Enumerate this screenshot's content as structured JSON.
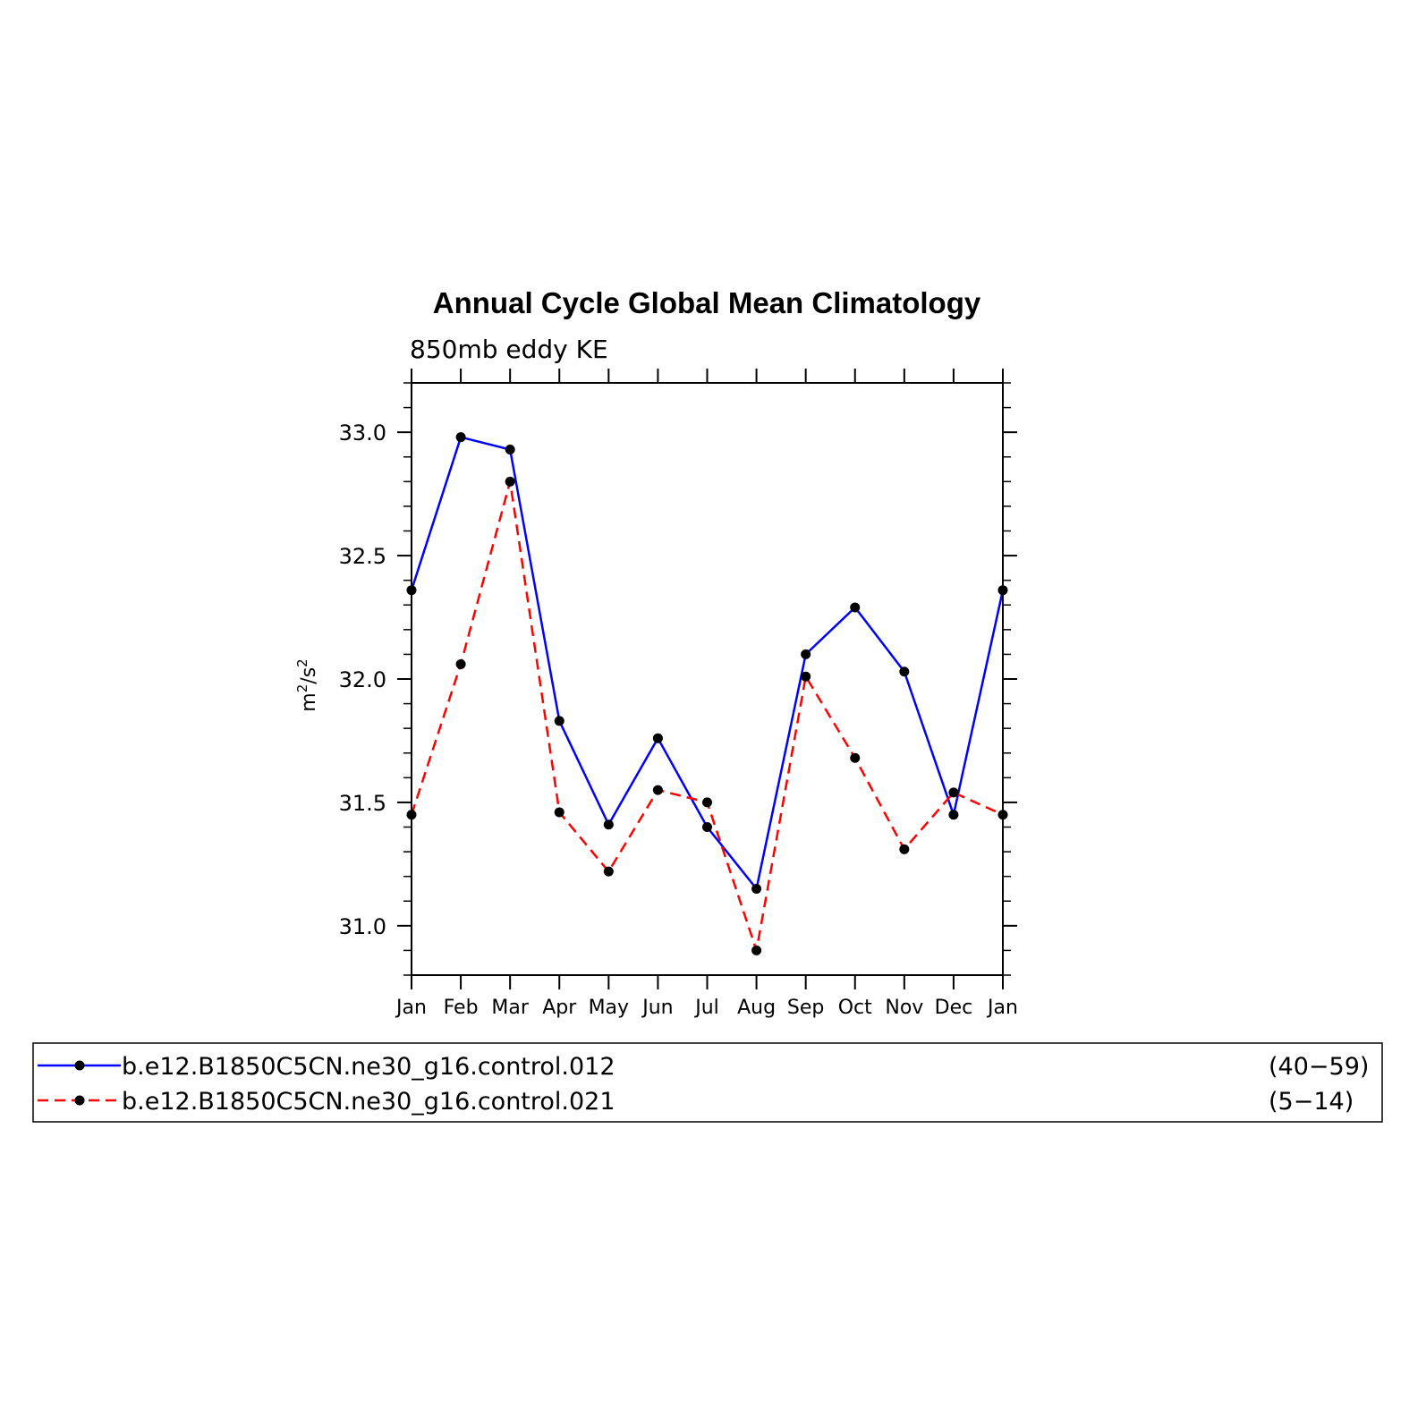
{
  "chart_data": {
    "type": "line",
    "title": "Annual Cycle Global Mean Climatology",
    "subtitle": "850mb eddy KE",
    "ylabel_base": "m",
    "ylabel_sup1": "2",
    "ylabel_mid": "/s",
    "ylabel_sup2": "2",
    "categories": [
      "Jan",
      "Feb",
      "Mar",
      "Apr",
      "May",
      "Jun",
      "Jul",
      "Aug",
      "Sep",
      "Oct",
      "Nov",
      "Dec",
      "Jan"
    ],
    "ylim": [
      30.8,
      33.2
    ],
    "yticks": [
      "31.0",
      "31.5",
      "32.0",
      "32.5",
      "33.0"
    ],
    "series": [
      {
        "name": "b.e12.B1850C5CN.ne30_g16.control.012",
        "years": "(40−59)",
        "color": "#0000ff",
        "dash": "solid",
        "values": [
          32.36,
          32.98,
          32.93,
          31.83,
          31.41,
          31.76,
          31.4,
          31.15,
          32.1,
          32.29,
          32.03,
          31.45,
          32.36
        ]
      },
      {
        "name": "b.e12.B1850C5CN.ne30_g16.control.021",
        "years": "(5−14)",
        "color": "#ff0000",
        "dash": "dashed",
        "values": [
          31.45,
          32.06,
          32.8,
          31.46,
          31.22,
          31.55,
          31.5,
          30.9,
          32.01,
          31.68,
          31.31,
          31.54,
          31.45
        ]
      }
    ],
    "marker_color": "#000000",
    "grid": false,
    "legend_position": "bottom"
  }
}
